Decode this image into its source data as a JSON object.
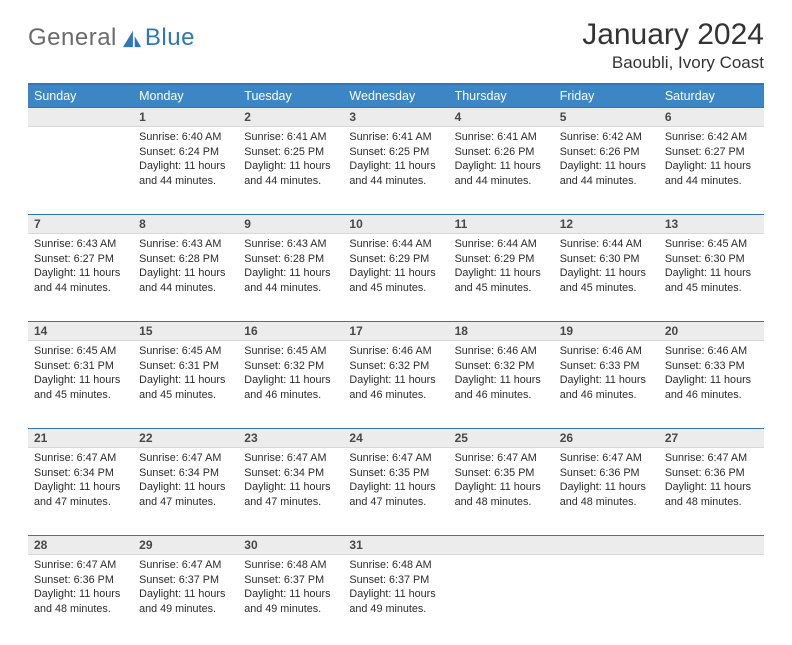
{
  "logo": {
    "text_general": "General",
    "text_blue": "Blue"
  },
  "title": "January 2024",
  "location": "Baoubli, Ivory Coast",
  "colors": {
    "header_bg": "#3d86c6",
    "header_text": "#ffffff",
    "border_accent": "#2f77b9",
    "daynum_bg": "#ececec",
    "body_text": "#2b2b2b",
    "logo_gray": "#6b6b6b",
    "logo_blue": "#2f77b9"
  },
  "day_headers": [
    "Sunday",
    "Monday",
    "Tuesday",
    "Wednesday",
    "Thursday",
    "Friday",
    "Saturday"
  ],
  "weeks": [
    [
      {
        "num": "",
        "sunrise": "",
        "sunset": "",
        "daylight": ""
      },
      {
        "num": "1",
        "sunrise": "Sunrise: 6:40 AM",
        "sunset": "Sunset: 6:24 PM",
        "daylight": "Daylight: 11 hours and 44 minutes."
      },
      {
        "num": "2",
        "sunrise": "Sunrise: 6:41 AM",
        "sunset": "Sunset: 6:25 PM",
        "daylight": "Daylight: 11 hours and 44 minutes."
      },
      {
        "num": "3",
        "sunrise": "Sunrise: 6:41 AM",
        "sunset": "Sunset: 6:25 PM",
        "daylight": "Daylight: 11 hours and 44 minutes."
      },
      {
        "num": "4",
        "sunrise": "Sunrise: 6:41 AM",
        "sunset": "Sunset: 6:26 PM",
        "daylight": "Daylight: 11 hours and 44 minutes."
      },
      {
        "num": "5",
        "sunrise": "Sunrise: 6:42 AM",
        "sunset": "Sunset: 6:26 PM",
        "daylight": "Daylight: 11 hours and 44 minutes."
      },
      {
        "num": "6",
        "sunrise": "Sunrise: 6:42 AM",
        "sunset": "Sunset: 6:27 PM",
        "daylight": "Daylight: 11 hours and 44 minutes."
      }
    ],
    [
      {
        "num": "7",
        "sunrise": "Sunrise: 6:43 AM",
        "sunset": "Sunset: 6:27 PM",
        "daylight": "Daylight: 11 hours and 44 minutes."
      },
      {
        "num": "8",
        "sunrise": "Sunrise: 6:43 AM",
        "sunset": "Sunset: 6:28 PM",
        "daylight": "Daylight: 11 hours and 44 minutes."
      },
      {
        "num": "9",
        "sunrise": "Sunrise: 6:43 AM",
        "sunset": "Sunset: 6:28 PM",
        "daylight": "Daylight: 11 hours and 44 minutes."
      },
      {
        "num": "10",
        "sunrise": "Sunrise: 6:44 AM",
        "sunset": "Sunset: 6:29 PM",
        "daylight": "Daylight: 11 hours and 45 minutes."
      },
      {
        "num": "11",
        "sunrise": "Sunrise: 6:44 AM",
        "sunset": "Sunset: 6:29 PM",
        "daylight": "Daylight: 11 hours and 45 minutes."
      },
      {
        "num": "12",
        "sunrise": "Sunrise: 6:44 AM",
        "sunset": "Sunset: 6:30 PM",
        "daylight": "Daylight: 11 hours and 45 minutes."
      },
      {
        "num": "13",
        "sunrise": "Sunrise: 6:45 AM",
        "sunset": "Sunset: 6:30 PM",
        "daylight": "Daylight: 11 hours and 45 minutes."
      }
    ],
    [
      {
        "num": "14",
        "sunrise": "Sunrise: 6:45 AM",
        "sunset": "Sunset: 6:31 PM",
        "daylight": "Daylight: 11 hours and 45 minutes."
      },
      {
        "num": "15",
        "sunrise": "Sunrise: 6:45 AM",
        "sunset": "Sunset: 6:31 PM",
        "daylight": "Daylight: 11 hours and 45 minutes."
      },
      {
        "num": "16",
        "sunrise": "Sunrise: 6:45 AM",
        "sunset": "Sunset: 6:32 PM",
        "daylight": "Daylight: 11 hours and 46 minutes."
      },
      {
        "num": "17",
        "sunrise": "Sunrise: 6:46 AM",
        "sunset": "Sunset: 6:32 PM",
        "daylight": "Daylight: 11 hours and 46 minutes."
      },
      {
        "num": "18",
        "sunrise": "Sunrise: 6:46 AM",
        "sunset": "Sunset: 6:32 PM",
        "daylight": "Daylight: 11 hours and 46 minutes."
      },
      {
        "num": "19",
        "sunrise": "Sunrise: 6:46 AM",
        "sunset": "Sunset: 6:33 PM",
        "daylight": "Daylight: 11 hours and 46 minutes."
      },
      {
        "num": "20",
        "sunrise": "Sunrise: 6:46 AM",
        "sunset": "Sunset: 6:33 PM",
        "daylight": "Daylight: 11 hours and 46 minutes."
      }
    ],
    [
      {
        "num": "21",
        "sunrise": "Sunrise: 6:47 AM",
        "sunset": "Sunset: 6:34 PM",
        "daylight": "Daylight: 11 hours and 47 minutes."
      },
      {
        "num": "22",
        "sunrise": "Sunrise: 6:47 AM",
        "sunset": "Sunset: 6:34 PM",
        "daylight": "Daylight: 11 hours and 47 minutes."
      },
      {
        "num": "23",
        "sunrise": "Sunrise: 6:47 AM",
        "sunset": "Sunset: 6:34 PM",
        "daylight": "Daylight: 11 hours and 47 minutes."
      },
      {
        "num": "24",
        "sunrise": "Sunrise: 6:47 AM",
        "sunset": "Sunset: 6:35 PM",
        "daylight": "Daylight: 11 hours and 47 minutes."
      },
      {
        "num": "25",
        "sunrise": "Sunrise: 6:47 AM",
        "sunset": "Sunset: 6:35 PM",
        "daylight": "Daylight: 11 hours and 48 minutes."
      },
      {
        "num": "26",
        "sunrise": "Sunrise: 6:47 AM",
        "sunset": "Sunset: 6:36 PM",
        "daylight": "Daylight: 11 hours and 48 minutes."
      },
      {
        "num": "27",
        "sunrise": "Sunrise: 6:47 AM",
        "sunset": "Sunset: 6:36 PM",
        "daylight": "Daylight: 11 hours and 48 minutes."
      }
    ],
    [
      {
        "num": "28",
        "sunrise": "Sunrise: 6:47 AM",
        "sunset": "Sunset: 6:36 PM",
        "daylight": "Daylight: 11 hours and 48 minutes."
      },
      {
        "num": "29",
        "sunrise": "Sunrise: 6:47 AM",
        "sunset": "Sunset: 6:37 PM",
        "daylight": "Daylight: 11 hours and 49 minutes."
      },
      {
        "num": "30",
        "sunrise": "Sunrise: 6:48 AM",
        "sunset": "Sunset: 6:37 PM",
        "daylight": "Daylight: 11 hours and 49 minutes."
      },
      {
        "num": "31",
        "sunrise": "Sunrise: 6:48 AM",
        "sunset": "Sunset: 6:37 PM",
        "daylight": "Daylight: 11 hours and 49 minutes."
      },
      {
        "num": "",
        "sunrise": "",
        "sunset": "",
        "daylight": ""
      },
      {
        "num": "",
        "sunrise": "",
        "sunset": "",
        "daylight": ""
      },
      {
        "num": "",
        "sunrise": "",
        "sunset": "",
        "daylight": ""
      }
    ]
  ]
}
